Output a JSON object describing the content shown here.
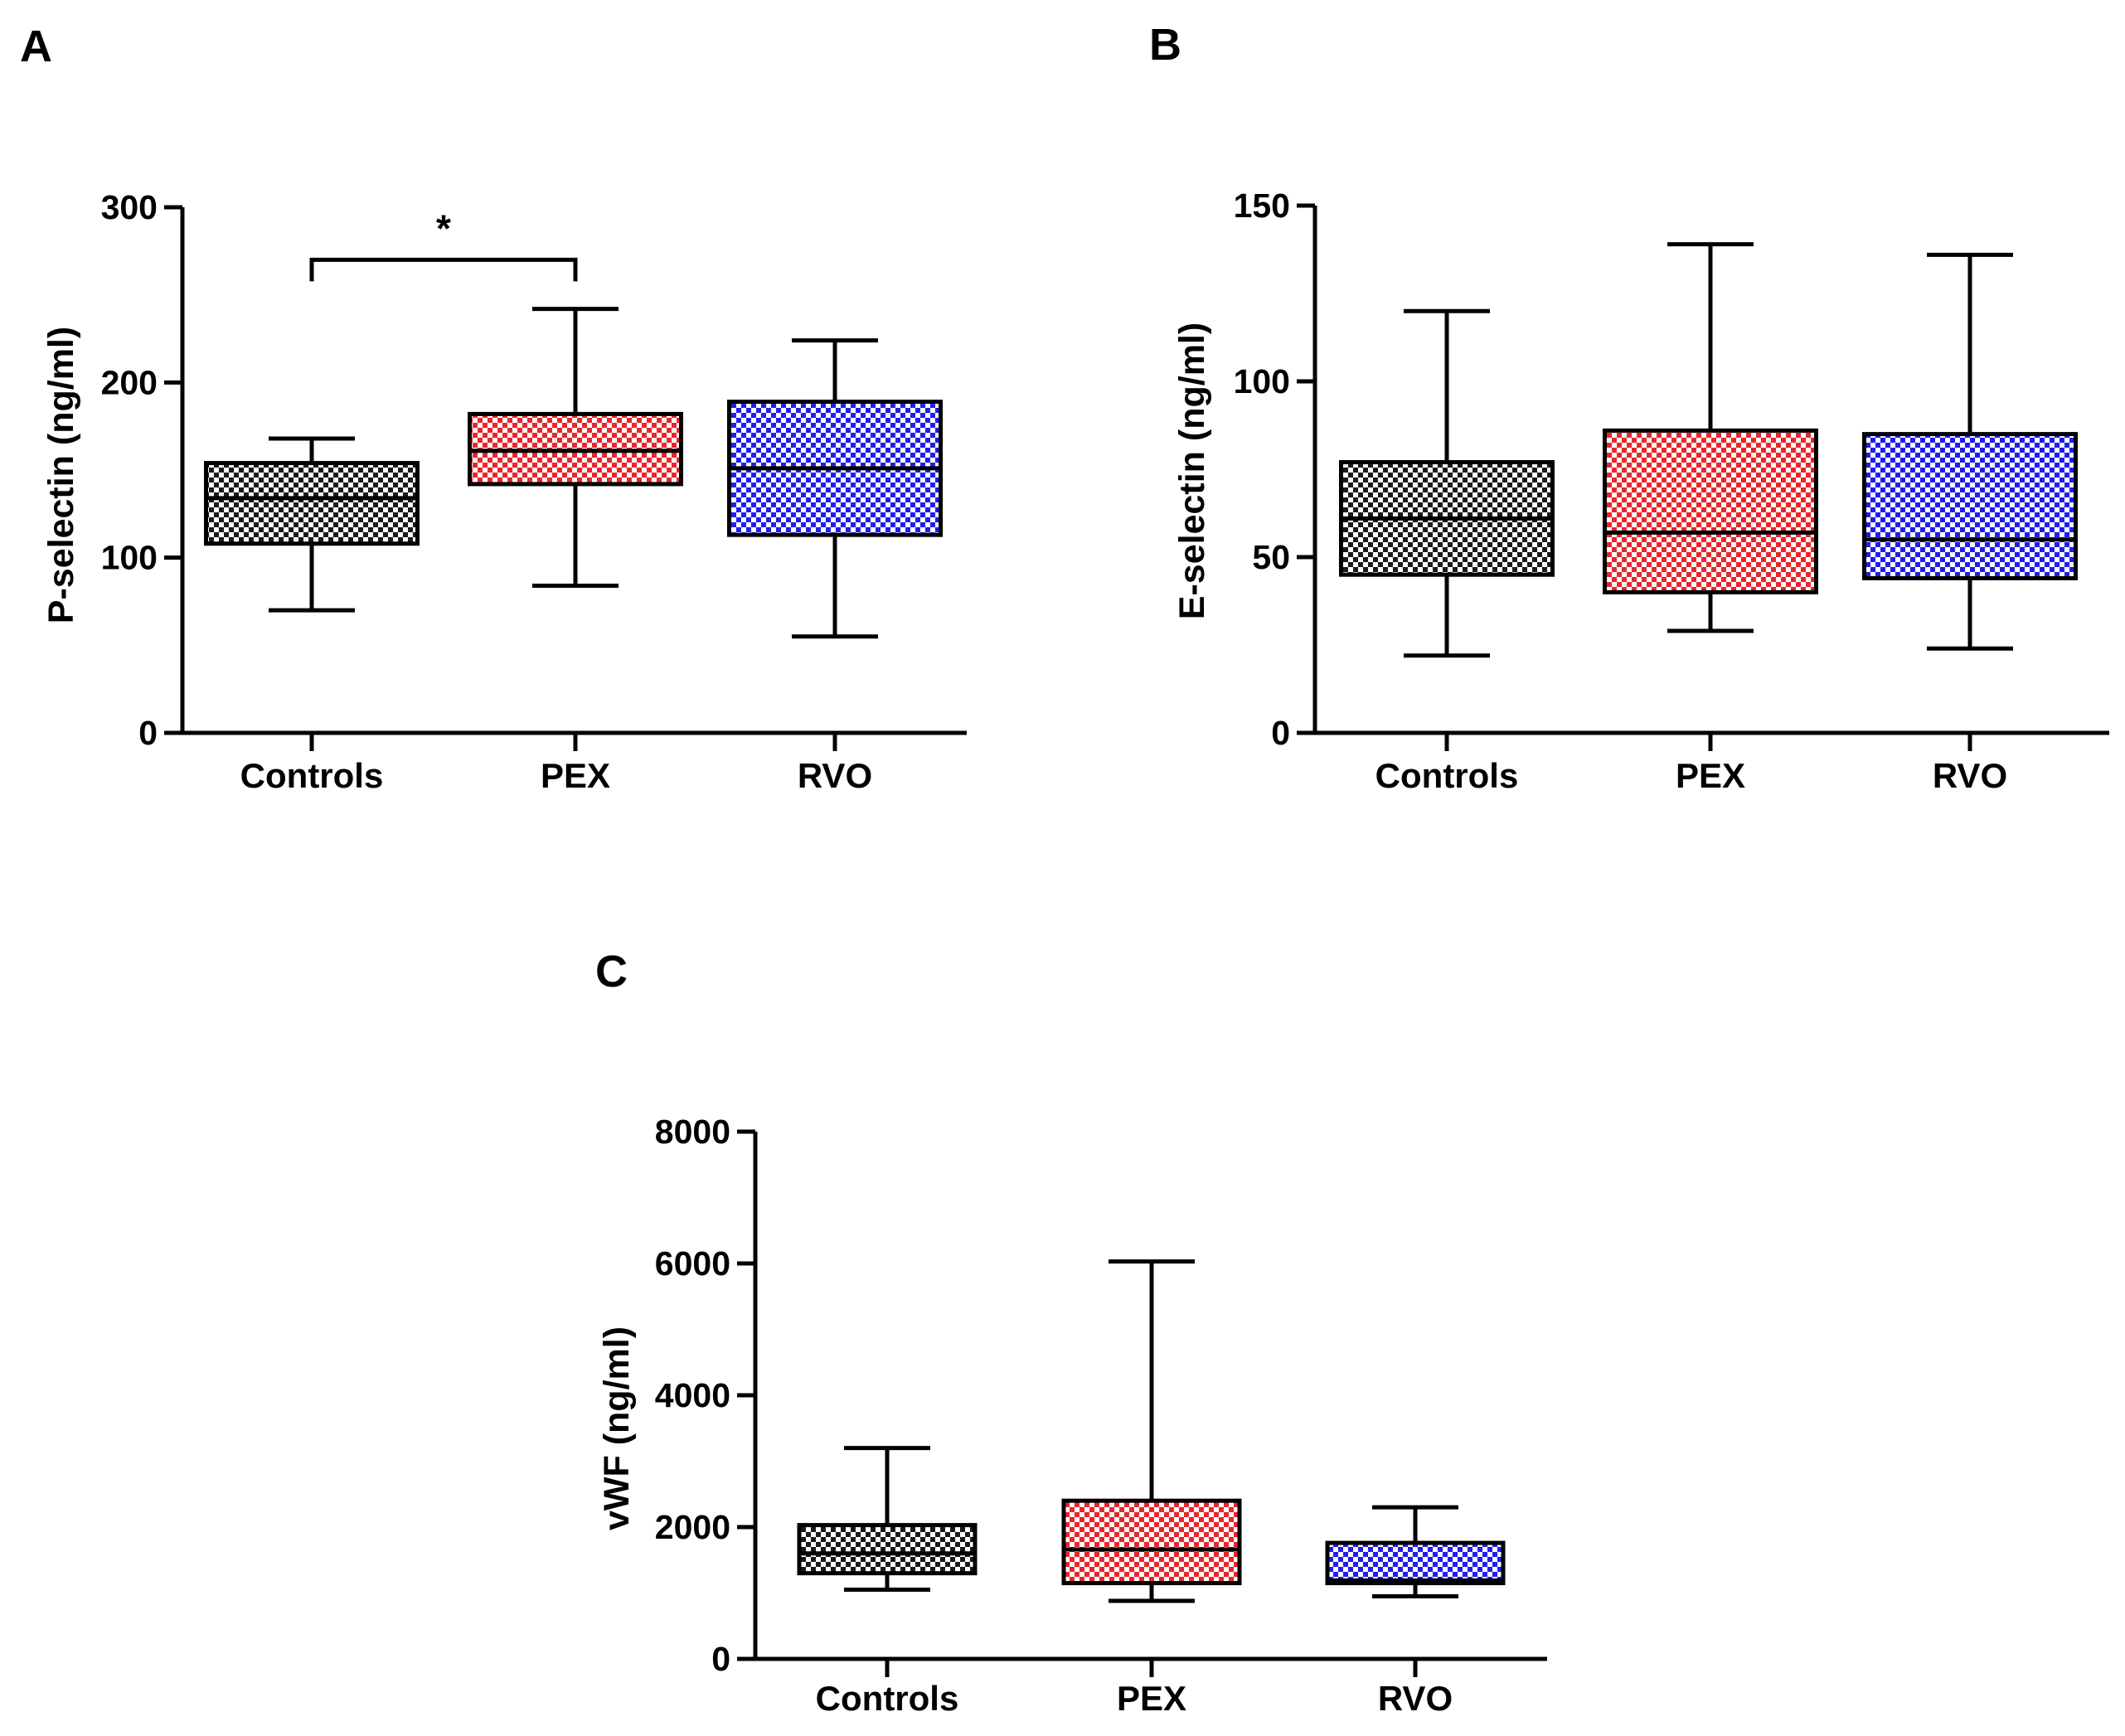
{
  "panels": {
    "A": {
      "letter": "A"
    },
    "B": {
      "letter": "B"
    },
    "C": {
      "letter": "C"
    }
  },
  "chart_data": [
    {
      "id": "A",
      "type": "box",
      "ylabel": "P-selectin (ng/ml)",
      "ylim": [
        0,
        300
      ],
      "yticks": [
        0,
        100,
        200,
        300
      ],
      "categories": [
        "Controls",
        "PEX",
        "RVO"
      ],
      "boxes": [
        {
          "name": "Controls",
          "min": 70,
          "q1": 108,
          "median": 134,
          "q3": 154,
          "max": 168,
          "color": "#1a1a1a"
        },
        {
          "name": "PEX",
          "min": 84,
          "q1": 142,
          "median": 161,
          "q3": 182,
          "max": 242,
          "color": "#e8262b"
        },
        {
          "name": "RVO",
          "min": 55,
          "q1": 113,
          "median": 151,
          "q3": 189,
          "max": 224,
          "color": "#1e1ef0"
        }
      ],
      "significance": {
        "between": [
          "Controls",
          "PEX"
        ],
        "label": "*",
        "y": 270
      }
    },
    {
      "id": "B",
      "type": "box",
      "ylabel": "E-selectin (ng/ml)",
      "ylim": [
        0,
        150
      ],
      "yticks": [
        0,
        50,
        100,
        150
      ],
      "categories": [
        "Controls",
        "PEX",
        "RVO"
      ],
      "boxes": [
        {
          "name": "Controls",
          "min": 22,
          "q1": 45,
          "median": 61,
          "q3": 77,
          "max": 120,
          "color": "#1a1a1a"
        },
        {
          "name": "PEX",
          "min": 29,
          "q1": 40,
          "median": 57,
          "q3": 86,
          "max": 139,
          "color": "#e8262b"
        },
        {
          "name": "RVO",
          "min": 24,
          "q1": 44,
          "median": 55,
          "q3": 85,
          "max": 136,
          "color": "#1e1ef0"
        }
      ]
    },
    {
      "id": "C",
      "type": "box",
      "ylabel": "vWF (ng/ml)",
      "ylim": [
        0,
        8000
      ],
      "yticks": [
        0,
        2000,
        4000,
        6000,
        8000
      ],
      "categories": [
        "Controls",
        "PEX",
        "RVO"
      ],
      "boxes": [
        {
          "name": "Controls",
          "min": 1050,
          "q1": 1300,
          "median": 1600,
          "q3": 2030,
          "max": 3200,
          "color": "#1a1a1a"
        },
        {
          "name": "PEX",
          "min": 880,
          "q1": 1150,
          "median": 1660,
          "q3": 2400,
          "max": 6030,
          "color": "#e8262b"
        },
        {
          "name": "RVO",
          "min": 950,
          "q1": 1150,
          "median": 1190,
          "q3": 1760,
          "max": 2300,
          "color": "#1e1ef0"
        }
      ]
    }
  ]
}
